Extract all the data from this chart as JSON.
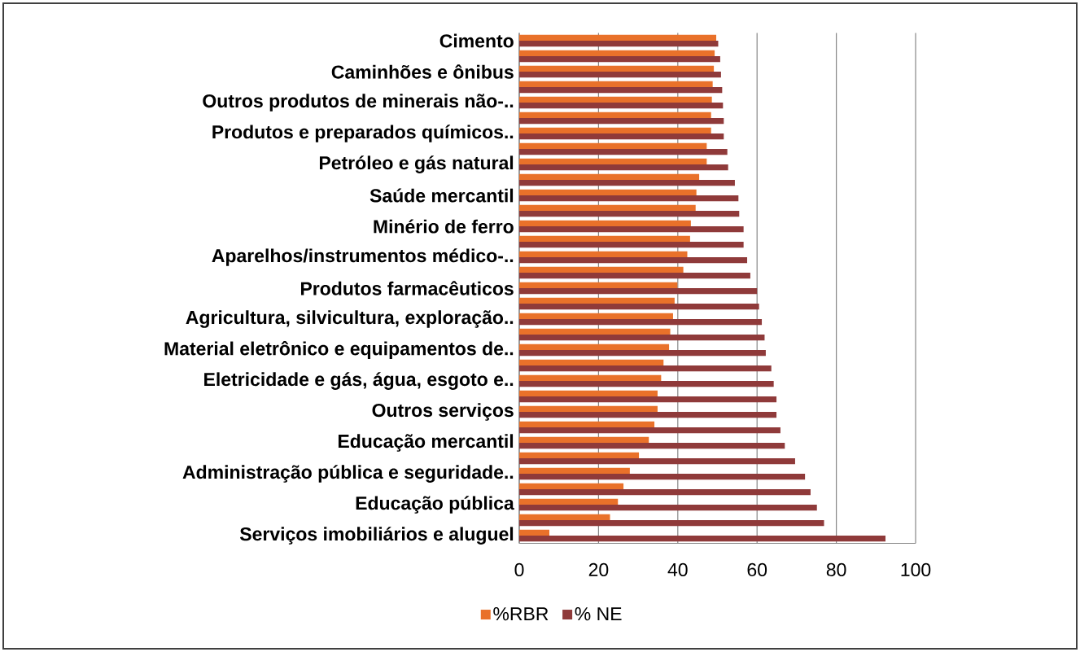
{
  "chart_data": {
    "type": "bar",
    "orientation": "horizontal",
    "categories": [
      "Cimento",
      null,
      "Caminhões e ônibus",
      null,
      "Outros produtos de minerais não-..",
      null,
      "Produtos e preparados químicos..",
      null,
      "Petróleo e gás natural",
      null,
      "Saúde mercantil",
      null,
      "Minério de ferro",
      null,
      "Aparelhos/instrumentos médico-..",
      null,
      "Produtos farmacêuticos",
      null,
      "Agricultura, silvicultura, exploração..",
      null,
      "Material eletrônico e equipamentos de..",
      null,
      "Eletricidade e gás, água, esgoto e..",
      null,
      "Outros serviços",
      null,
      "Educação mercantil",
      null,
      "Administração pública e seguridade..",
      null,
      "Educação pública",
      null,
      "Serviços imobiliários e aluguel"
    ],
    "series": [
      {
        "name": "%RBR",
        "color": "#e9712a",
        "values": [
          49.7,
          49.3,
          49.1,
          48.8,
          48.6,
          48.4,
          48.4,
          47.3,
          47.3,
          45.4,
          44.7,
          44.5,
          43.3,
          43.1,
          42.4,
          41.4,
          39.9,
          39.2,
          38.8,
          38.1,
          37.8,
          36.4,
          35.8,
          34.9,
          34.9,
          34.1,
          32.7,
          30.2,
          27.9,
          26.3,
          24.9,
          22.9,
          7.6
        ]
      },
      {
        "name": "% NE",
        "color": "#8f3a3a",
        "values": [
          50.2,
          50.7,
          50.9,
          51.2,
          51.4,
          51.6,
          51.6,
          52.5,
          52.7,
          54.4,
          55.3,
          55.5,
          56.6,
          56.6,
          57.5,
          58.3,
          60.0,
          60.5,
          61.2,
          61.9,
          62.2,
          63.6,
          64.2,
          64.9,
          64.9,
          65.9,
          67.0,
          69.6,
          72.1,
          73.5,
          75.1,
          76.9,
          92.4
        ]
      }
    ],
    "xlim": [
      0,
      100
    ],
    "xticks": [
      0,
      20,
      40,
      60,
      80,
      100
    ],
    "grid": "x",
    "legend": "bottom"
  }
}
